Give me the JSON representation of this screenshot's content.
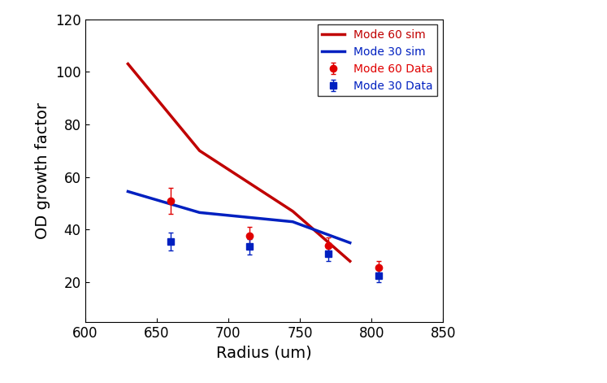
{
  "chart_data": {
    "type": "line",
    "x_label": "Radius (um)",
    "y_label": "OD growth factor",
    "xlim": [
      600,
      850
    ],
    "xticks": [
      600,
      650,
      700,
      750,
      800,
      850
    ],
    "ylim": [
      5,
      120
    ],
    "yticks": [
      20,
      40,
      60,
      80,
      100,
      120
    ],
    "legend": "upper right",
    "series": [
      {
        "name": "Mode 60 sim",
        "type": "line",
        "color": "#c00000",
        "line_style": "solid",
        "x": [
          630,
          680,
          745,
          785
        ],
        "values": [
          103,
          70,
          47,
          28
        ]
      },
      {
        "name": "Mode 30 sim",
        "type": "line",
        "color": "#0020c0",
        "line_style": "solid",
        "x": [
          630,
          680,
          745,
          785
        ],
        "values": [
          54.5,
          46.5,
          43,
          35
        ]
      },
      {
        "name": "Mode 60 Data",
        "type": "scatter",
        "color": "#e00000",
        "marker": "circle",
        "x": [
          660,
          715,
          770,
          805
        ],
        "values": [
          51,
          37.5,
          34,
          25.5
        ],
        "error": [
          5,
          3.5,
          3,
          2.5
        ]
      },
      {
        "name": "Mode 30 Data",
        "type": "scatter",
        "color": "#0020c0",
        "marker": "square",
        "x": [
          660,
          715,
          770,
          805
        ],
        "values": [
          35.5,
          33.5,
          31,
          22.5
        ],
        "error": [
          3.5,
          3,
          3,
          2.5
        ]
      }
    ]
  }
}
